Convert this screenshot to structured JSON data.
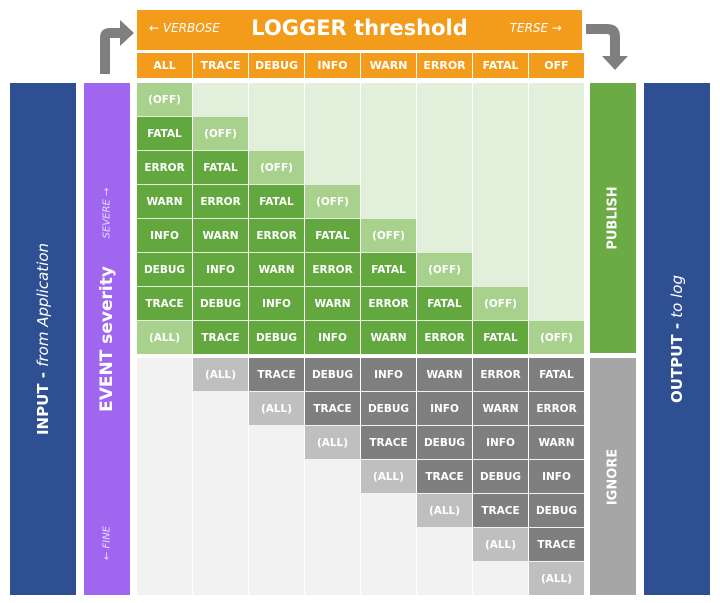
{
  "header": {
    "title": "LOGGER threshold",
    "left_hint": "← VERBOSE",
    "right_hint": "TERSE →"
  },
  "columns": [
    "ALL",
    "TRACE",
    "DEBUG",
    "INFO",
    "WARN",
    "ERROR",
    "FATAL",
    "OFF"
  ],
  "input_label": {
    "main": "INPUT - ",
    "sub": "from Application"
  },
  "output_label": {
    "main": "OUTPUT - ",
    "sub": "to log"
  },
  "severity_label": "EVENT severity",
  "severe_label": "SEVERE →",
  "fine_label": "← FINE",
  "publish_label": "PUBLISH",
  "ignore_label": "IGNORE",
  "levels": [
    "(OFF)",
    "FATAL",
    "ERROR",
    "WARN",
    "INFO",
    "DEBUG",
    "TRACE",
    "(ALL)"
  ],
  "colors": {
    "orange": "#f39b1a",
    "navy": "#2e4f91",
    "purple": "#a066f0",
    "publish_green": "#6aab45",
    "green_dark": "#62a83e",
    "green_light": "#a9d18e",
    "green_bg": "#e2efda",
    "ignore_gray": "#a6a6a6",
    "gray_dark": "#7f7f7f",
    "gray_light": "#bfbfbf",
    "gray_bg": "#f2f2f2"
  }
}
